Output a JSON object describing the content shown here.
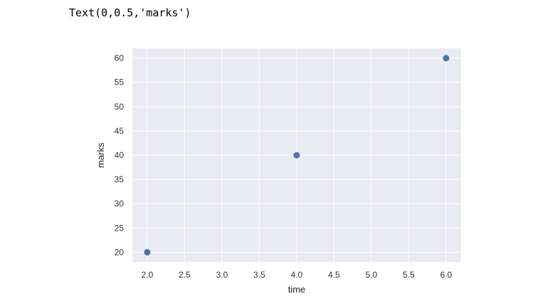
{
  "output_text": "Text(0,0.5,'marks')",
  "colors": {
    "plot_background": "#eaeaf2",
    "grid": "#ffffff",
    "marker": "#4c72b0"
  },
  "chart_data": {
    "type": "scatter",
    "x": [
      2.0,
      4.0,
      6.0
    ],
    "y": [
      20,
      40,
      60
    ],
    "xlabel": "time",
    "ylabel": "marks",
    "xlim": [
      1.8,
      6.2
    ],
    "ylim": [
      18,
      62
    ],
    "xticks": [
      "2.0",
      "2.5",
      "3.0",
      "3.5",
      "4.0",
      "4.5",
      "5.0",
      "5.5",
      "6.0"
    ],
    "yticks": [
      "20",
      "25",
      "30",
      "35",
      "40",
      "45",
      "50",
      "55",
      "60"
    ],
    "grid": true
  }
}
